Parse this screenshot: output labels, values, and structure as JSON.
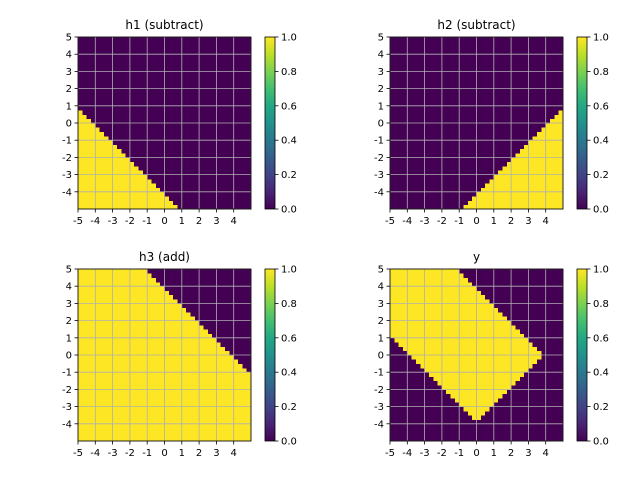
{
  "chart_data": [
    {
      "type": "heatmap",
      "title": "h1 (subtract)",
      "xlabel": "",
      "ylabel": "",
      "xlim": [
        -5,
        5
      ],
      "ylim": [
        -5,
        5
      ],
      "xticks": [
        "-5",
        "-4",
        "-3",
        "-2",
        "-1",
        "0",
        "1",
        "2",
        "3",
        "4"
      ],
      "yticks": [
        "5",
        "4",
        "3",
        "2",
        "1",
        "0",
        "-1",
        "-2",
        "-3",
        "-4"
      ],
      "grid": true,
      "colormap": "viridis",
      "colorbar": {
        "min": 0.0,
        "max": 1.0,
        "ticks": [
          "0.0",
          "0.2",
          "0.4",
          "0.6",
          "0.8",
          "1.0"
        ]
      },
      "values": {
        "value": 1,
        "where": "x + y < -4",
        "else": 0
      }
    },
    {
      "type": "heatmap",
      "title": "h2 (subtract)",
      "xlabel": "",
      "ylabel": "",
      "xlim": [
        -5,
        5
      ],
      "ylim": [
        -5,
        5
      ],
      "xticks": [
        "-5",
        "-4",
        "-3",
        "-2",
        "-1",
        "0",
        "1",
        "2",
        "3",
        "4"
      ],
      "yticks": [
        "5",
        "4",
        "3",
        "2",
        "1",
        "0",
        "-1",
        "-2",
        "-3",
        "-4"
      ],
      "grid": true,
      "colormap": "viridis",
      "colorbar": {
        "min": 0.0,
        "max": 1.0,
        "ticks": [
          "0.0",
          "0.2",
          "0.4",
          "0.6",
          "0.8",
          "1.0"
        ]
      },
      "values": {
        "value": 1,
        "where": "x - y > 4",
        "else": 0
      }
    },
    {
      "type": "heatmap",
      "title": "h3 (add)",
      "xlabel": "",
      "ylabel": "",
      "xlim": [
        -5,
        5
      ],
      "ylim": [
        -5,
        5
      ],
      "xticks": [
        "-5",
        "-4",
        "-3",
        "-2",
        "-1",
        "0",
        "1",
        "2",
        "3",
        "4"
      ],
      "yticks": [
        "5",
        "4",
        "3",
        "2",
        "1",
        "0",
        "-1",
        "-2",
        "-3",
        "-4"
      ],
      "grid": true,
      "colormap": "viridis",
      "colorbar": {
        "min": 0.0,
        "max": 1.0,
        "ticks": [
          "0.0",
          "0.2",
          "0.4",
          "0.6",
          "0.8",
          "1.0"
        ]
      },
      "values": {
        "value": 1,
        "where": "x + y < 4",
        "else": 0
      }
    },
    {
      "type": "heatmap",
      "title": "y",
      "xlabel": "",
      "ylabel": "",
      "xlim": [
        -5,
        5
      ],
      "ylim": [
        -5,
        5
      ],
      "xticks": [
        "-5",
        "-4",
        "-3",
        "-2",
        "-1",
        "0",
        "1",
        "2",
        "3",
        "4"
      ],
      "yticks": [
        "5",
        "4",
        "3",
        "2",
        "1",
        "0",
        "-1",
        "-2",
        "-3",
        "-4"
      ],
      "grid": true,
      "colormap": "viridis",
      "colorbar": {
        "min": 0.0,
        "max": 1.0,
        "ticks": [
          "0.0",
          "0.2",
          "0.4",
          "0.6",
          "0.8",
          "1.0"
        ]
      },
      "values": {
        "value": 1,
        "where": "x + y < 4 and x + y > -4 and x - y < 4",
        "else": 0
      }
    }
  ]
}
